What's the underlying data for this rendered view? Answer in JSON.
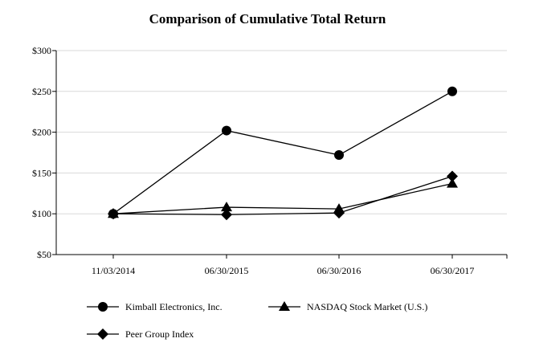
{
  "chart_data": {
    "type": "line",
    "title": "Comparison of Cumulative Total Return",
    "categories": [
      "11/03/2014",
      "06/30/2015",
      "06/30/2016",
      "06/30/2017"
    ],
    "y_tick_labels": [
      "$50",
      "$100",
      "$150",
      "$200",
      "$250",
      "$300"
    ],
    "y_ticks": [
      50,
      100,
      150,
      200,
      250,
      300
    ],
    "ylim": [
      50,
      300
    ],
    "grid": true,
    "legend_position": "bottom",
    "series": [
      {
        "name": "Kimball Electronics, Inc.",
        "marker": "circle",
        "values": [
          100,
          202,
          172,
          250
        ]
      },
      {
        "name": "NASDAQ Stock Market (U.S.)",
        "marker": "triangle",
        "values": [
          100,
          108,
          106,
          137
        ]
      },
      {
        "name": "Peer Group Index",
        "marker": "diamond",
        "values": [
          100,
          99,
          101,
          146
        ]
      }
    ]
  }
}
